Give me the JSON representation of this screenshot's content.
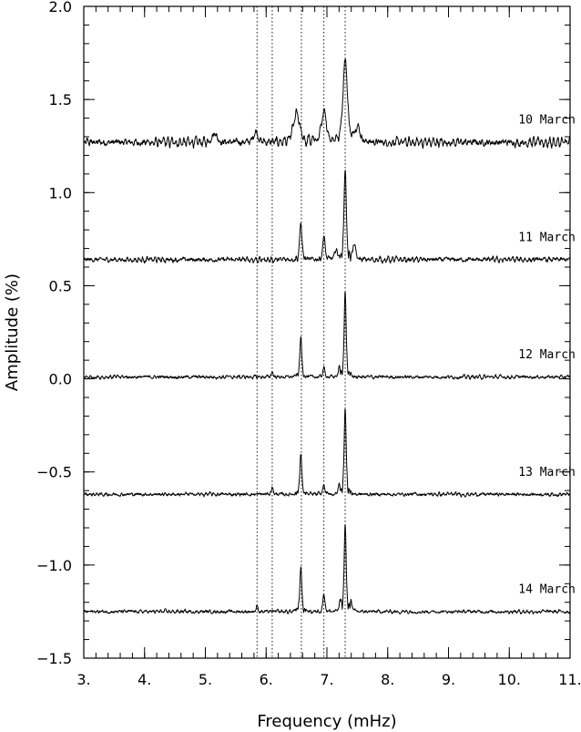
{
  "chart_data": {
    "type": "line",
    "xlabel": "Frequency (mHz)",
    "ylabel": "Amplitude (%)",
    "xlim": [
      3.0,
      11.0
    ],
    "ylim": [
      -1.5,
      2.0
    ],
    "x_ticks": [
      {
        "value": 3,
        "label": "3."
      },
      {
        "value": 4,
        "label": "4."
      },
      {
        "value": 5,
        "label": "5."
      },
      {
        "value": 6,
        "label": "6."
      },
      {
        "value": 7,
        "label": "7."
      },
      {
        "value": 8,
        "label": "8."
      },
      {
        "value": 9,
        "label": "9."
      },
      {
        "value": 10,
        "label": "10."
      },
      {
        "value": 11,
        "label": "11."
      }
    ],
    "y_ticks": [
      {
        "value": 2.0,
        "label": "2.0"
      },
      {
        "value": 1.5,
        "label": "1.5"
      },
      {
        "value": 1.0,
        "label": "1.0"
      },
      {
        "value": 0.5,
        "label": "0.5"
      },
      {
        "value": 0.0,
        "label": "0.0"
      },
      {
        "value": -0.5,
        "label": "−0.5"
      },
      {
        "value": -1.0,
        "label": "−1.0"
      },
      {
        "value": -1.5,
        "label": "−1.5"
      }
    ],
    "reference_lines_x": [
      5.85,
      6.1,
      6.58,
      6.95,
      7.3
    ],
    "series": [
      {
        "name": "10 March",
        "label_pos": [
          10.15,
          1.37
        ],
        "baseline": 1.27,
        "noise": 0.012,
        "ripple": 0.02,
        "peaks": [
          [
            5.15,
            0.05,
            0.06
          ],
          [
            5.83,
            0.06,
            0.05
          ],
          [
            6.5,
            0.15,
            0.07
          ],
          [
            6.95,
            0.15,
            0.06
          ],
          [
            7.3,
            0.44,
            0.05
          ],
          [
            7.5,
            0.08,
            0.06
          ]
        ]
      },
      {
        "name": "11 March",
        "label_pos": [
          10.15,
          0.74
        ],
        "baseline": 0.64,
        "noise": 0.008,
        "ripple": 0.01,
        "peaks": [
          [
            6.57,
            0.2,
            0.025
          ],
          [
            6.95,
            0.13,
            0.025
          ],
          [
            7.3,
            0.49,
            0.025
          ],
          [
            7.15,
            0.05,
            0.03
          ],
          [
            7.45,
            0.08,
            0.03
          ]
        ]
      },
      {
        "name": "12 March",
        "label_pos": [
          10.15,
          0.11
        ],
        "baseline": 0.01,
        "noise": 0.006,
        "ripple": 0.005,
        "peaks": [
          [
            6.1,
            0.03,
            0.02
          ],
          [
            6.57,
            0.21,
            0.022
          ],
          [
            6.95,
            0.05,
            0.022
          ],
          [
            7.3,
            0.46,
            0.022
          ],
          [
            7.2,
            0.04,
            0.02
          ]
        ]
      },
      {
        "name": "13 March",
        "label_pos": [
          10.15,
          -0.52
        ],
        "baseline": -0.62,
        "noise": 0.006,
        "ripple": 0.005,
        "peaks": [
          [
            6.1,
            0.04,
            0.02
          ],
          [
            6.57,
            0.22,
            0.022
          ],
          [
            6.95,
            0.05,
            0.022
          ],
          [
            7.3,
            0.47,
            0.022
          ],
          [
            7.2,
            0.04,
            0.02
          ]
        ]
      },
      {
        "name": "14 March",
        "label_pos": [
          10.15,
          -1.15
        ],
        "baseline": -1.25,
        "noise": 0.006,
        "ripple": 0.005,
        "peaks": [
          [
            5.85,
            0.03,
            0.02
          ],
          [
            6.57,
            0.24,
            0.022
          ],
          [
            6.95,
            0.1,
            0.022
          ],
          [
            7.3,
            0.47,
            0.022
          ],
          [
            7.22,
            0.05,
            0.02
          ],
          [
            7.4,
            0.05,
            0.02
          ]
        ]
      }
    ]
  }
}
